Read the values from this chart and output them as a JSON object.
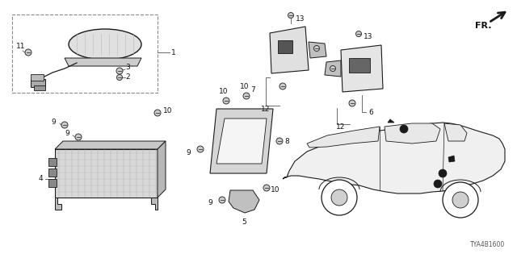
{
  "background": "#ffffff",
  "part_code": "TYA4B1600",
  "fr_label": "FR.",
  "dark": "#1a1a1a",
  "gray": "#666666",
  "lgray": "#aaaaaa",
  "mgray": "#888888"
}
